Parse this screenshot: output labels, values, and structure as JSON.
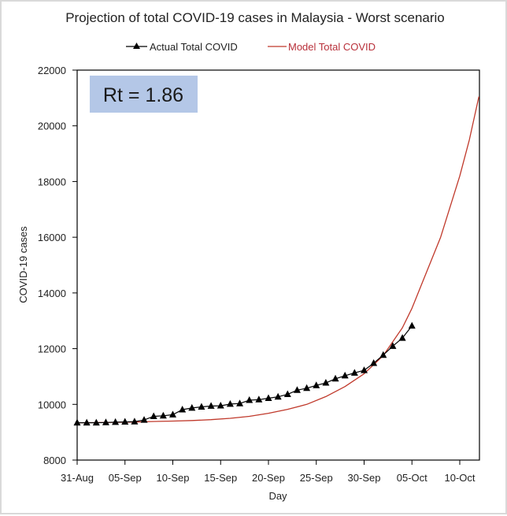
{
  "chart_data": {
    "type": "line",
    "title": "Projection of total COVID-19 cases in Malaysia - Worst scenario",
    "xlabel": "Day",
    "ylabel": "COVID-19 cases",
    "ylim": [
      8000,
      22000
    ],
    "yticks": [
      "8000",
      "10000",
      "12000",
      "14000",
      "16000",
      "18000",
      "20000",
      "22000"
    ],
    "ytick_values": [
      8000,
      10000,
      12000,
      14000,
      16000,
      18000,
      20000,
      22000
    ],
    "xlim_days": [
      0,
      42
    ],
    "xticks": [
      "31-Aug",
      "05-Sep",
      "10-Sep",
      "15-Sep",
      "20-Sep",
      "25-Sep",
      "30-Sep",
      "05-Oct",
      "10-Oct"
    ],
    "xtick_days": [
      0,
      5,
      10,
      15,
      20,
      25,
      30,
      35,
      40
    ],
    "legend_position": "top",
    "annotation": "Rt = 1.86",
    "series": [
      {
        "name": "Actual Total COVID",
        "color": "#000000",
        "marker": "triangle",
        "x_days": [
          0,
          1,
          2,
          3,
          4,
          5,
          6,
          7,
          8,
          9,
          10,
          11,
          12,
          13,
          14,
          15,
          16,
          17,
          18,
          19,
          20,
          21,
          22,
          23,
          24,
          25,
          26,
          27,
          28,
          29,
          30,
          31,
          32,
          33,
          34,
          35
        ],
        "values": [
          9340,
          9340,
          9340,
          9350,
          9360,
          9370,
          9380,
          9440,
          9570,
          9590,
          9630,
          9810,
          9870,
          9910,
          9940,
          9950,
          10010,
          10030,
          10150,
          10170,
          10220,
          10270,
          10360,
          10510,
          10580,
          10680,
          10770,
          10920,
          11030,
          11130,
          11220,
          11480,
          11770,
          12090,
          12380,
          12820
        ]
      },
      {
        "name": "Model Total COVID",
        "color": "#c0392b",
        "x_days": [
          0,
          2,
          4,
          6,
          8,
          10,
          12,
          14,
          16,
          18,
          20,
          22,
          24,
          26,
          28,
          30,
          32,
          34,
          35,
          36,
          38,
          40,
          41,
          42
        ],
        "values": [
          9340,
          9345,
          9355,
          9365,
          9385,
          9400,
          9420,
          9450,
          9500,
          9570,
          9680,
          9820,
          10000,
          10280,
          10640,
          11100,
          11750,
          12750,
          13450,
          14300,
          16000,
          18200,
          19500,
          21050
        ]
      }
    ]
  }
}
